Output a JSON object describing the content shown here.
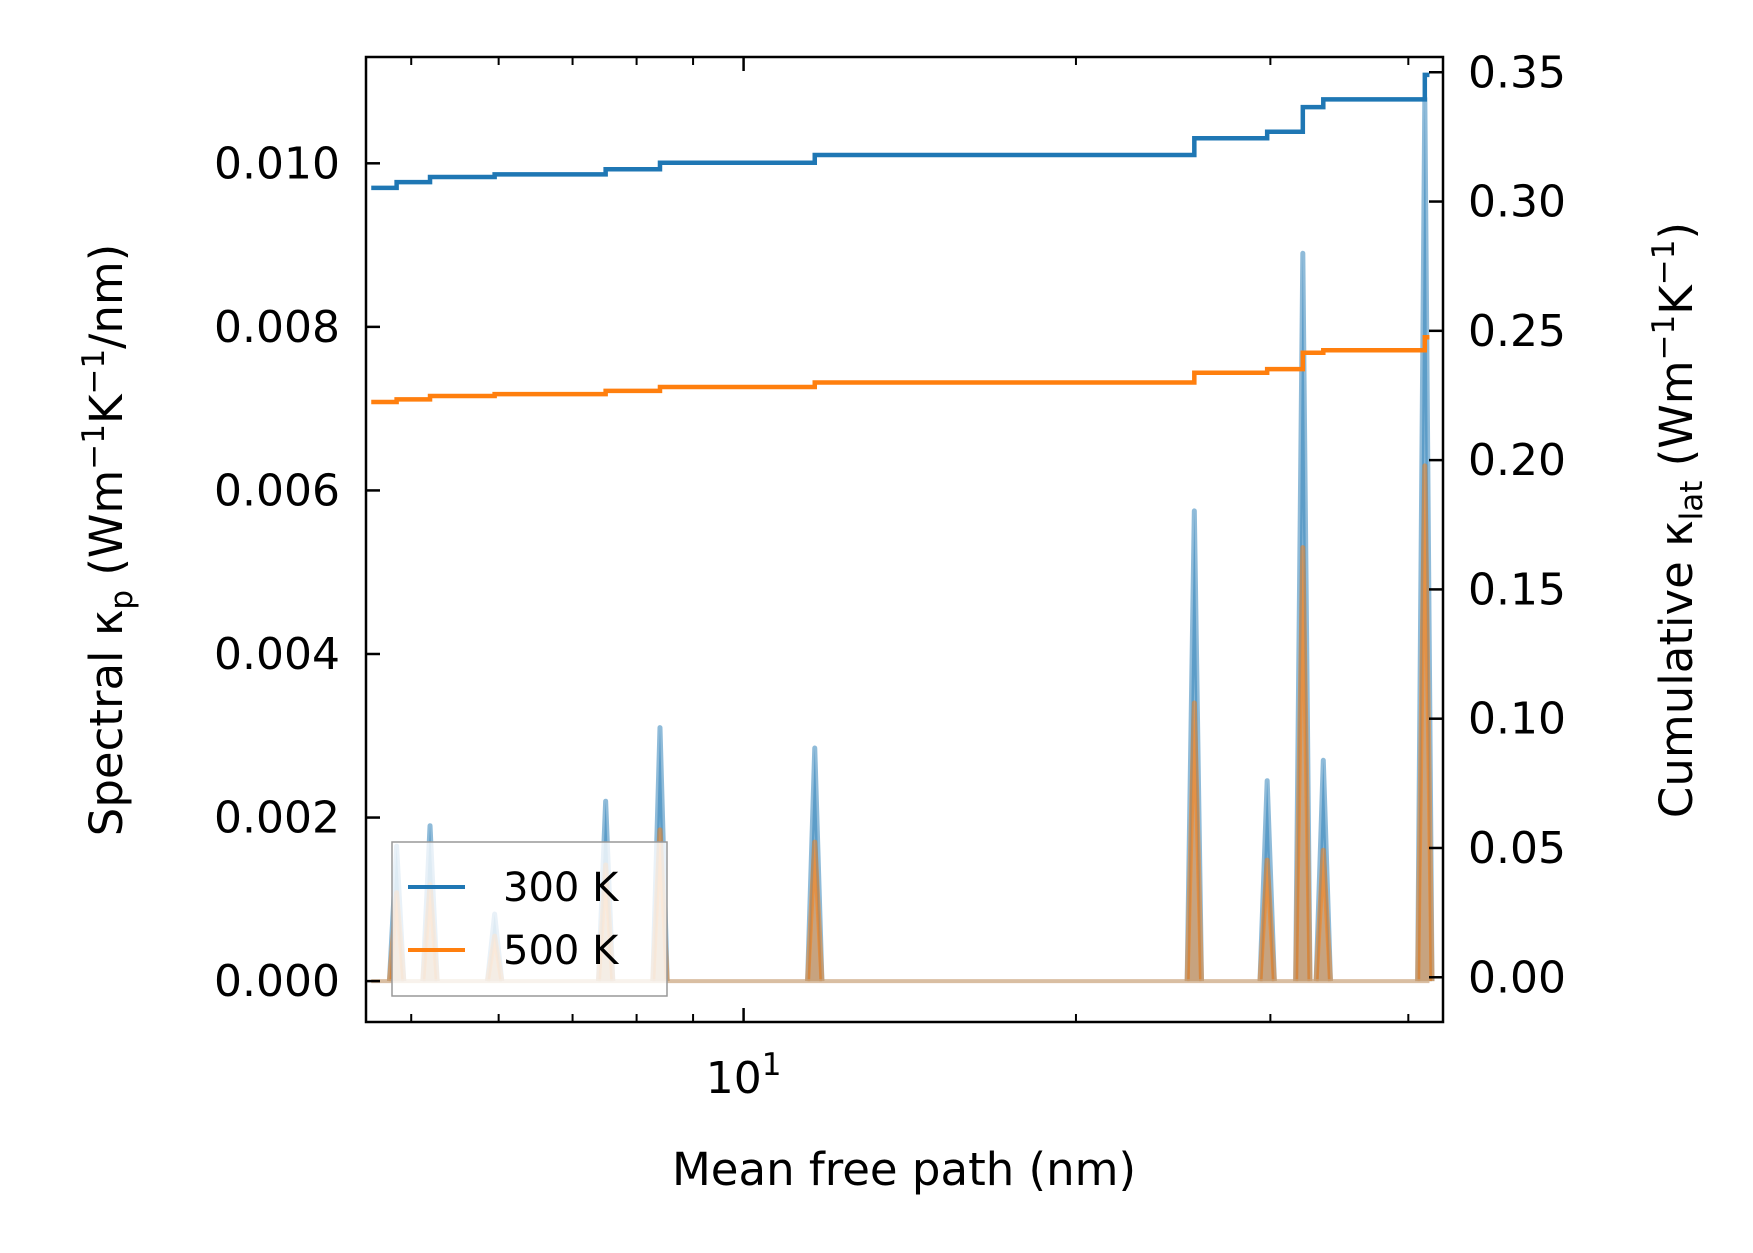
{
  "chart_data": {
    "type": "line",
    "xlabel": "Mean free path (nm)",
    "ylabel_left": {
      "main": "Spectral κ",
      "sub": "p",
      "unit_open": " (Wm",
      "e1": "−1",
      "k": "K",
      "e2": "−1",
      "unit_close": "/nm)"
    },
    "ylabel_right": {
      "main": "Cumulative κ",
      "sub": "lat",
      "unit_open": " (Wm",
      "e1": "−1",
      "k": "K",
      "e2": "−1",
      "unit_close": ")"
    },
    "x_scale": "log",
    "xlim": [
      4.55,
      43.0
    ],
    "ylim_left": [
      -0.0005,
      0.0113
    ],
    "ylim_right": [
      -0.0173,
      0.3559
    ],
    "x_major_tick": {
      "base": "10",
      "exp": "1",
      "value": 10
    },
    "x_minor_ticks": [
      5,
      6,
      7,
      8,
      9,
      20,
      30,
      40
    ],
    "yticks_left": [
      "0.000",
      "0.002",
      "0.004",
      "0.006",
      "0.008",
      "0.010"
    ],
    "yticks_right": [
      "0.00",
      "0.05",
      "0.10",
      "0.15",
      "0.20",
      "0.25",
      "0.30",
      "0.35"
    ],
    "legend": {
      "placement": "lower-left",
      "entries": [
        "300 K",
        "500 K"
      ]
    },
    "colors": {
      "s300": "#1f77b4",
      "s500": "#ff7f0e"
    },
    "spectral": {
      "x": [
        4.85,
        5.2,
        5.95,
        7.5,
        8.4,
        11.6,
        25.6,
        29.8,
        32.1,
        33.5,
        41.4
      ],
      "300 K": [
        0.00165,
        0.0019,
        0.00082,
        0.0022,
        0.0031,
        0.00285,
        0.00575,
        0.00245,
        0.0089,
        0.0027,
        0.0108
      ],
      "500 K": [
        0.00108,
        0.00118,
        0.00055,
        0.00142,
        0.00185,
        0.0017,
        0.0034,
        0.00148,
        0.0053,
        0.0016,
        0.0063
      ]
    },
    "cumulative": {
      "x_range": [
        4.6,
        41.8
      ],
      "300 K": {
        "start": 0.3053,
        "steps": [
          [
            4.85,
            0.3075
          ],
          [
            5.2,
            0.3095
          ],
          [
            5.95,
            0.3105
          ],
          [
            7.5,
            0.3125
          ],
          [
            8.4,
            0.315
          ],
          [
            11.6,
            0.318
          ],
          [
            25.6,
            0.3245
          ],
          [
            29.8,
            0.327
          ],
          [
            32.1,
            0.3365
          ],
          [
            33.5,
            0.3395
          ],
          [
            41.4,
            0.349
          ]
        ]
      },
      "500 K": {
        "start": 0.2225,
        "steps": [
          [
            4.85,
            0.2235
          ],
          [
            5.2,
            0.2248
          ],
          [
            5.95,
            0.2255
          ],
          [
            7.5,
            0.2268
          ],
          [
            8.4,
            0.2283
          ],
          [
            11.6,
            0.23
          ],
          [
            25.6,
            0.2338
          ],
          [
            29.8,
            0.2352
          ],
          [
            32.1,
            0.2415
          ],
          [
            33.5,
            0.2425
          ],
          [
            41.4,
            0.2475
          ]
        ]
      }
    }
  }
}
